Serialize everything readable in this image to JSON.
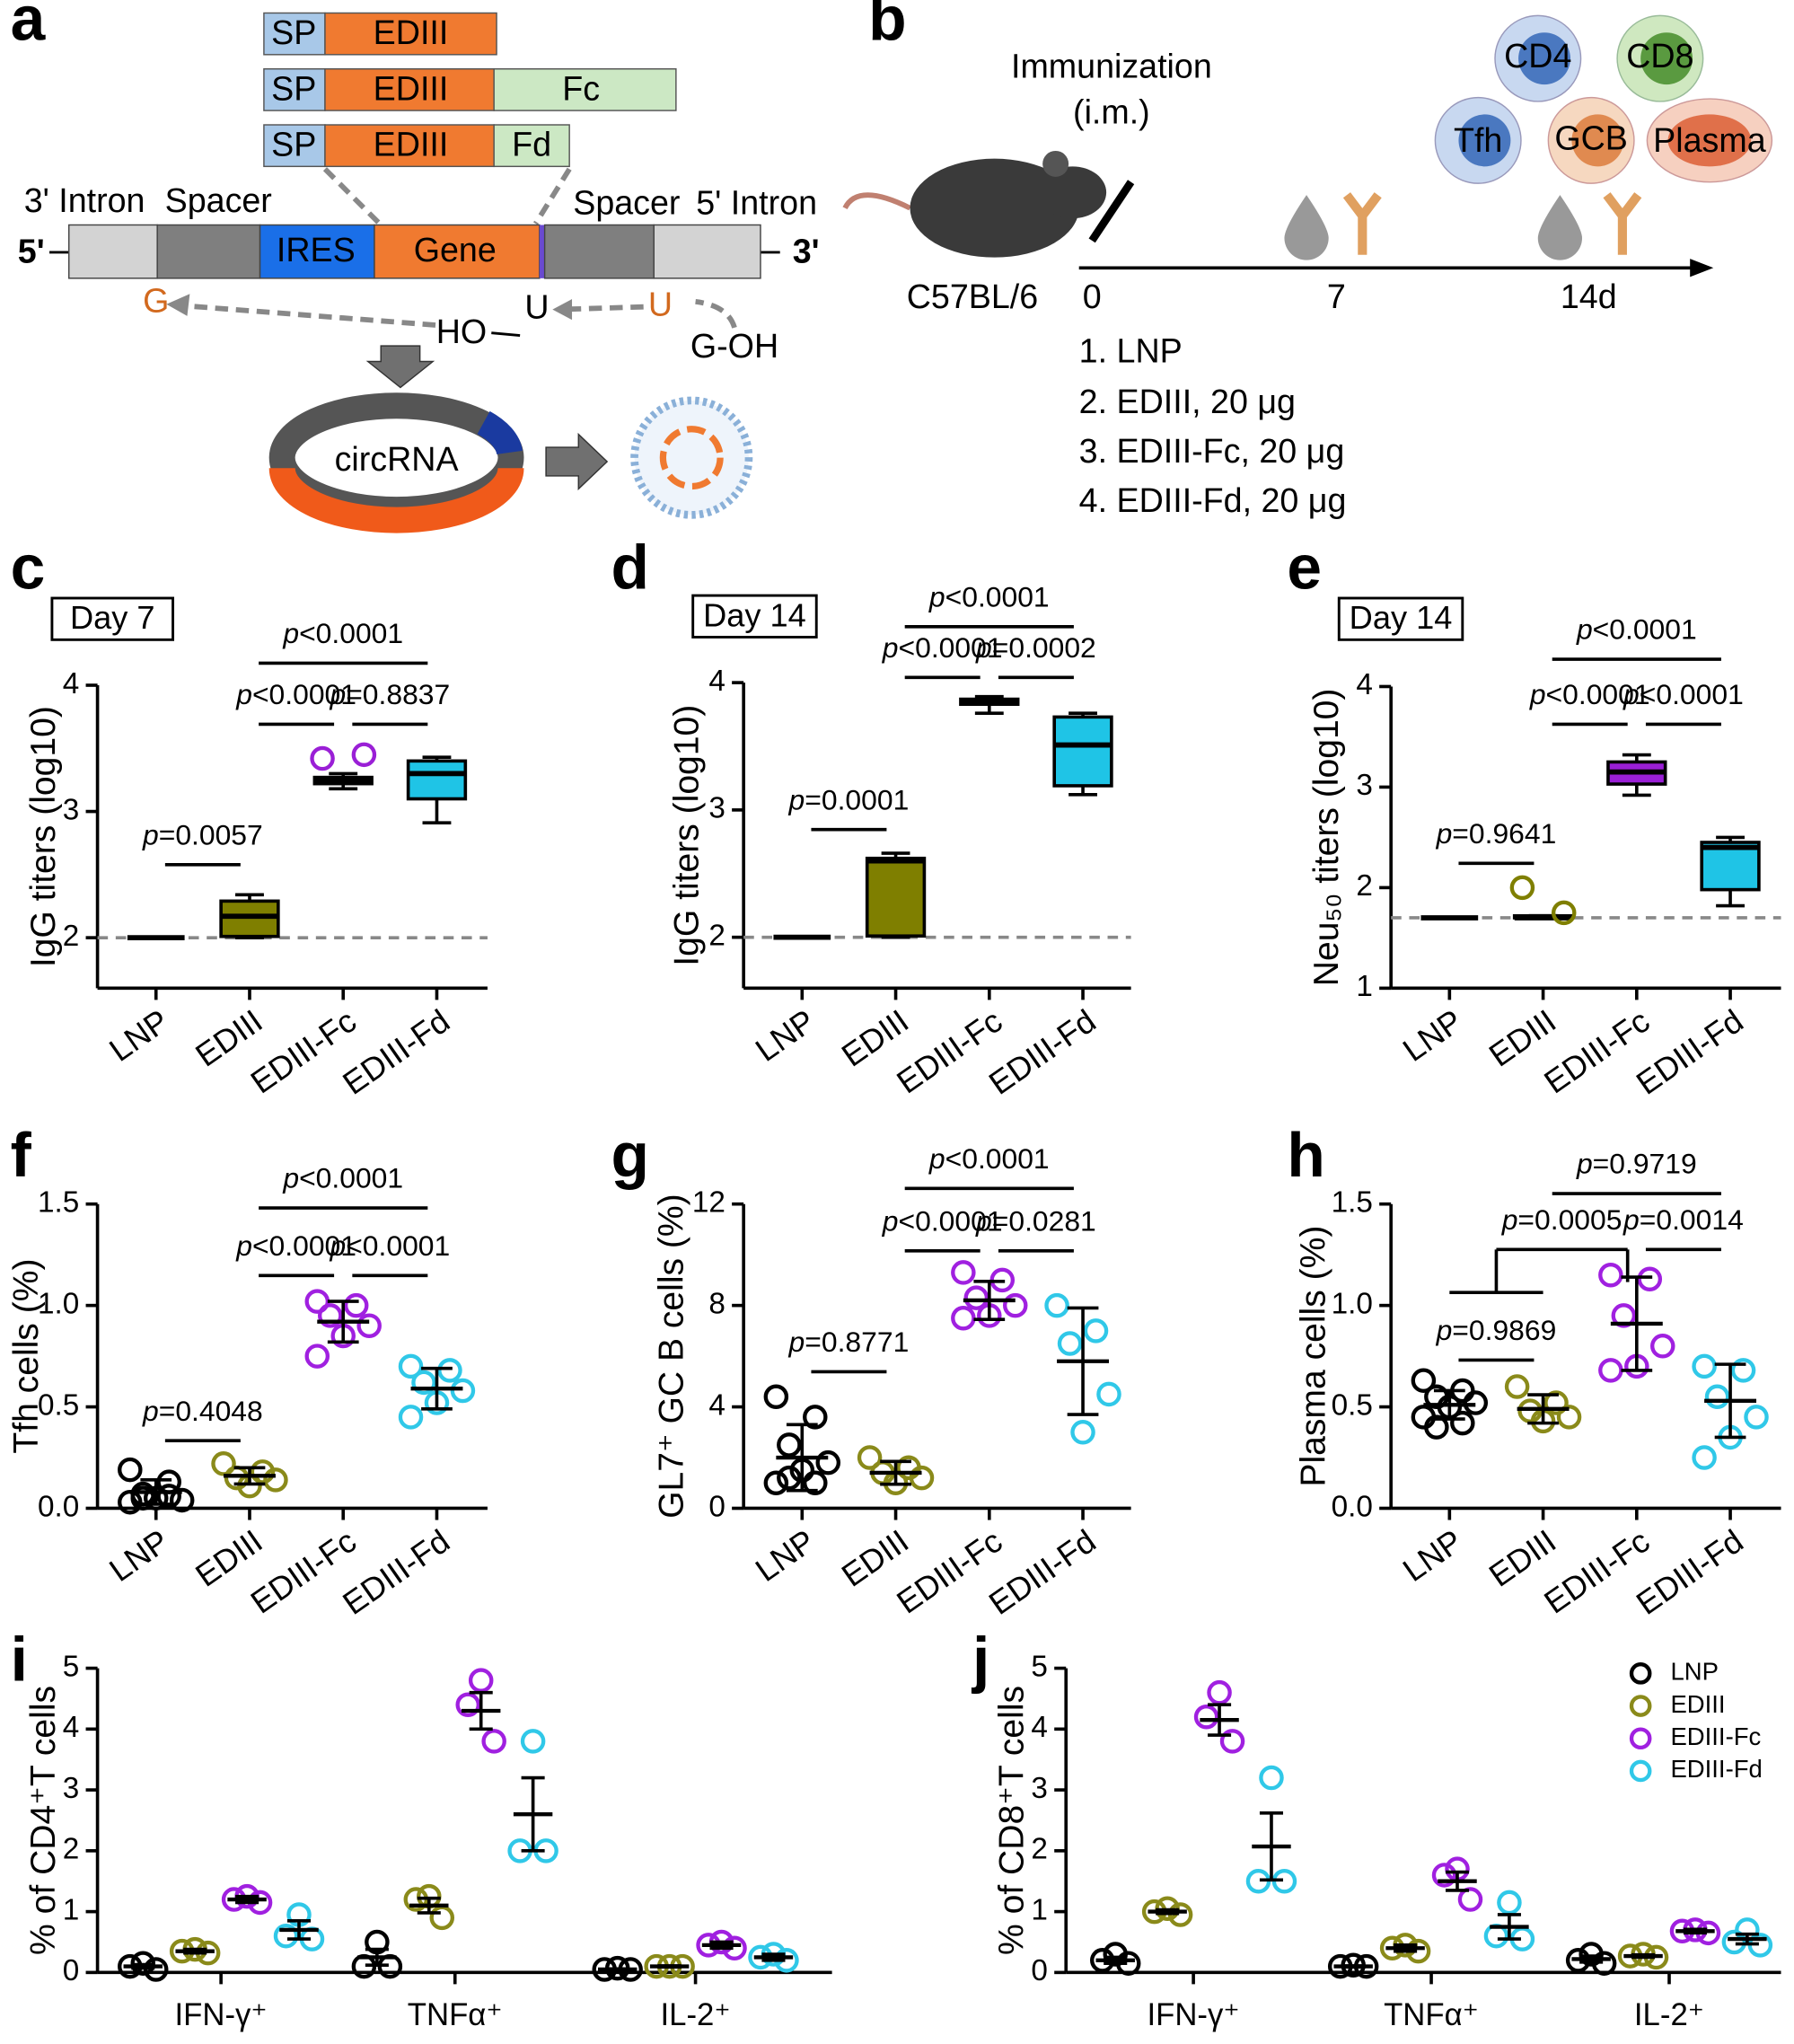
{
  "panels": [
    "a",
    "b",
    "c",
    "d",
    "e",
    "f",
    "g",
    "h",
    "i",
    "j"
  ],
  "diagram_a": {
    "constructs": [
      [
        "SP",
        "EDIII"
      ],
      [
        "SP",
        "EDIII",
        "Fc"
      ],
      [
        "SP",
        "EDIII",
        "Fd"
      ]
    ],
    "labels": [
      "3' Intron",
      "Spacer",
      "Spacer",
      "5' Intron"
    ],
    "strand": [
      "5'",
      "IRES",
      "Gene",
      "3'"
    ],
    "splicing": [
      "G",
      "HO",
      "U",
      "U",
      "G-OH"
    ],
    "product": "circRNA"
  },
  "diagram_b": {
    "title": [
      "Immunization",
      "(i.m.)"
    ],
    "cells": [
      "CD4",
      "CD8",
      "Tfh",
      "GCB",
      "Plasma"
    ],
    "mouse": "C57BL/6",
    "timepoints": [
      "0",
      "7",
      "14d"
    ],
    "groups": [
      "1. LNP",
      "2. EDIII, 20 μg",
      "3. EDIII-Fc, 20 μg",
      "4. EDIII-Fd, 20 μg"
    ]
  },
  "chart_data": [
    {
      "type": "box",
      "title": "Day 7",
      "ylabel": "IgG titers (log10)",
      "categories": [
        "LNP",
        "EDIII",
        "EDIII-Fc",
        "EDIII-Fd"
      ],
      "colors": [
        "#000000",
        "#7f7f00",
        "#9a1fd6",
        "#1fc4e6"
      ],
      "ylim": [
        1.6,
        4
      ],
      "yticks": [
        2,
        3,
        4
      ],
      "reference_line": 2,
      "boxes": [
        {
          "min": 2,
          "q1": 2,
          "median": 2,
          "q3": 2,
          "max": 2
        },
        {
          "min": 2,
          "q1": 2.01,
          "median": 2.17,
          "q3": 2.29,
          "max": 2.34
        },
        {
          "min": 3.18,
          "q1": 3.22,
          "median": 3.25,
          "q3": 3.27,
          "max": 3.3
        },
        {
          "min": 2.91,
          "q1": 3.1,
          "median": 3.3,
          "q3": 3.4,
          "max": 3.43
        }
      ],
      "points": [
        [],
        [],
        [
          3.42,
          3.45
        ],
        []
      ],
      "comparisons": [
        {
          "from": [
            0
          ],
          "to": [
            1
          ],
          "label": "p=0.0057"
        },
        {
          "from": [
            1
          ],
          "to": [
            2
          ],
          "label": "p<0.0001"
        },
        {
          "from": [
            2
          ],
          "to": [
            3
          ],
          "label": "p=0.8837"
        },
        {
          "from": [
            1
          ],
          "to": [
            3
          ],
          "label": "p<0.0001"
        }
      ]
    },
    {
      "type": "box",
      "title": "Day 14",
      "ylabel": "IgG titers (log10)",
      "categories": [
        "LNP",
        "EDIII",
        "EDIII-Fc",
        "EDIII-Fd"
      ],
      "colors": [
        "#000000",
        "#7f7f00",
        "#9a1fd6",
        "#1fc4e6"
      ],
      "ylim": [
        1.6,
        4
      ],
      "yticks": [
        2,
        3,
        4
      ],
      "reference_line": 2,
      "boxes": [
        {
          "min": 2,
          "q1": 2,
          "median": 2,
          "q3": 2,
          "max": 2
        },
        {
          "min": 2,
          "q1": 2.01,
          "median": 2.6,
          "q3": 2.62,
          "max": 2.66
        },
        {
          "min": 3.76,
          "q1": 3.83,
          "median": 3.85,
          "q3": 3.87,
          "max": 3.89
        },
        {
          "min": 3.12,
          "q1": 3.19,
          "median": 3.51,
          "q3": 3.73,
          "max": 3.76
        }
      ],
      "comparisons": [
        {
          "from": [
            0
          ],
          "to": [
            1
          ],
          "label": "p=0.0001"
        },
        {
          "from": [
            1
          ],
          "to": [
            2
          ],
          "label": "p<0.0001"
        },
        {
          "from": [
            2
          ],
          "to": [
            3
          ],
          "label": "p=0.0002"
        },
        {
          "from": [
            1
          ],
          "to": [
            3
          ],
          "label": "p<0.0001"
        }
      ]
    },
    {
      "type": "box",
      "title": "Day 14",
      "ylabel": "Neu₅₀ titers (log10)",
      "categories": [
        "LNP",
        "EDIII",
        "EDIII-Fc",
        "EDIII-Fd"
      ],
      "colors": [
        "#000000",
        "#7f7f00",
        "#9a1fd6",
        "#1fc4e6"
      ],
      "ylim": [
        1,
        4
      ],
      "yticks": [
        1,
        2,
        3,
        4
      ],
      "reference_line": 1.7,
      "boxes": [
        {
          "min": 1.7,
          "q1": 1.7,
          "median": 1.7,
          "q3": 1.7,
          "max": 1.7
        },
        {
          "min": 1.7,
          "q1": 1.7,
          "median": 1.7,
          "q3": 1.72,
          "max": 1.72
        },
        {
          "min": 2.92,
          "q1": 3.03,
          "median": 3.15,
          "q3": 3.25,
          "max": 3.32
        },
        {
          "min": 1.82,
          "q1": 1.98,
          "median": 2.4,
          "q3": 2.45,
          "max": 2.5
        }
      ],
      "points": [
        [],
        [
          2.0,
          1.75
        ],
        [],
        []
      ],
      "comparisons": [
        {
          "from": [
            0
          ],
          "to": [
            1
          ],
          "label": "p=0.9641"
        },
        {
          "from": [
            1
          ],
          "to": [
            2
          ],
          "label": "p<0.0001"
        },
        {
          "from": [
            2
          ],
          "to": [
            3
          ],
          "label": "p<0.0001"
        },
        {
          "from": [
            1
          ],
          "to": [
            3
          ],
          "label": "p<0.0001"
        }
      ]
    },
    {
      "type": "dot",
      "ylabel": "Tfh cells (%)",
      "categories": [
        "LNP",
        "EDIII",
        "EDIII-Fc",
        "EDIII-Fd"
      ],
      "colors": [
        "#000000",
        "#8a8a1a",
        "#a020e0",
        "#30c8e8"
      ],
      "ylim": [
        0,
        1.5
      ],
      "yticks": [
        {
          "value": 0,
          "label": "0.0"
        },
        {
          "value": 0.5,
          "label": "0.5"
        },
        {
          "value": 1,
          "label": "1.0"
        },
        {
          "value": 1.5,
          "label": "1.5"
        }
      ],
      "points": [
        [
          0.19,
          0.13,
          0.05,
          0.04,
          0.05,
          0.03,
          0.06,
          0.07
        ],
        [
          0.22,
          0.18,
          0.15,
          0.14,
          0.11
        ],
        [
          1.02,
          1.0,
          0.95,
          0.9,
          0.85,
          0.75
        ],
        [
          0.7,
          0.68,
          0.62,
          0.58,
          0.52,
          0.45
        ]
      ],
      "means": [
        0.08,
        0.16,
        0.92,
        0.59
      ],
      "errors": [
        0.06,
        0.04,
        0.1,
        0.1
      ],
      "comparisons": [
        {
          "from": [
            0
          ],
          "to": [
            1
          ],
          "label": "p=0.4048"
        },
        {
          "from": [
            1
          ],
          "to": [
            2
          ],
          "label": "p<0.0001"
        },
        {
          "from": [
            2
          ],
          "to": [
            3
          ],
          "label": "p<0.0001"
        },
        {
          "from": [
            1
          ],
          "to": [
            3
          ],
          "label": "p<0.0001"
        }
      ]
    },
    {
      "type": "dot",
      "ylabel": "GL7⁺ GC B cells (%)",
      "categories": [
        "LNP",
        "EDIII",
        "EDIII-Fc",
        "EDIII-Fd"
      ],
      "colors": [
        "#000000",
        "#8a8a1a",
        "#a020e0",
        "#30c8e8"
      ],
      "ylim": [
        0,
        12
      ],
      "yticks": [
        0,
        4,
        8,
        12
      ],
      "points": [
        [
          4.4,
          3.6,
          2.5,
          1.8,
          1.5,
          1.0,
          1.0,
          1.2
        ],
        [
          2.0,
          1.6,
          1.4,
          1.2,
          1.0
        ],
        [
          9.3,
          9.0,
          8.3,
          8.0,
          7.6,
          7.5
        ],
        [
          8.0,
          7.0,
          6.5,
          4.5,
          3.0
        ]
      ],
      "means": [
        2.0,
        1.4,
        8.2,
        5.8
      ],
      "errors": [
        1.3,
        0.45,
        0.75,
        2.1
      ],
      "comparisons": [
        {
          "from": [
            0
          ],
          "to": [
            1
          ],
          "label": "p=0.8771"
        },
        {
          "from": [
            1
          ],
          "to": [
            2
          ],
          "label": "p<0.0001"
        },
        {
          "from": [
            2
          ],
          "to": [
            3
          ],
          "label": "p=0.0281"
        },
        {
          "from": [
            1
          ],
          "to": [
            3
          ],
          "label": "p<0.0001"
        }
      ]
    },
    {
      "type": "dot",
      "ylabel": "Plasma cells (%)",
      "categories": [
        "LNP",
        "EDIII",
        "EDIII-Fc",
        "EDIII-Fd"
      ],
      "colors": [
        "#000000",
        "#8a8a1a",
        "#a020e0",
        "#30c8e8"
      ],
      "ylim": [
        0,
        1.5
      ],
      "yticks": [
        {
          "value": 0,
          "label": "0.0"
        },
        {
          "value": 0.5,
          "label": "0.5"
        },
        {
          "value": 1,
          "label": "1.0"
        },
        {
          "value": 1.5,
          "label": "1.5"
        }
      ],
      "points": [
        [
          0.63,
          0.58,
          0.55,
          0.52,
          0.5,
          0.45,
          0.42,
          0.4
        ],
        [
          0.6,
          0.52,
          0.48,
          0.45,
          0.43
        ],
        [
          1.15,
          1.13,
          0.95,
          0.8,
          0.7,
          0.68
        ],
        [
          0.7,
          0.68,
          0.55,
          0.45,
          0.35,
          0.25
        ]
      ],
      "means": [
        0.51,
        0.49,
        0.91,
        0.53
      ],
      "errors": [
        0.07,
        0.07,
        0.23,
        0.18
      ],
      "comparisons": [
        {
          "from": [
            0
          ],
          "to": [
            1
          ],
          "label": "p=0.9869"
        },
        {
          "from": [
            0,
            1
          ],
          "to": [
            2
          ],
          "label": "p=0.0005"
        },
        {
          "from": [
            2
          ],
          "to": [
            3
          ],
          "label": "p=0.0014"
        },
        {
          "from": [
            1
          ],
          "to": [
            3
          ],
          "label": "p=0.9719"
        }
      ]
    },
    {
      "type": "grouped_dot",
      "ylabel": "% of CD4⁺T cells",
      "categories": [
        "IFN-γ⁺",
        "TNFα⁺",
        "IL-2⁺"
      ],
      "ylim": [
        0,
        5
      ],
      "yticks": [
        0,
        1,
        2,
        3,
        4,
        5
      ],
      "series": [
        {
          "color": "#000000",
          "values": [
            [
              0.15,
              0.1,
              0.05
            ],
            [
              0.5,
              0.1,
              0.1
            ],
            [
              0.07,
              0.05,
              0.05
            ]
          ],
          "means": [
            0.1,
            0.25,
            0.05
          ],
          "errors": [
            0.03,
            0.13,
            0.01
          ]
        },
        {
          "color": "#8a8a1a",
          "values": [
            [
              0.38,
              0.35,
              0.32
            ],
            [
              1.25,
              1.2,
              0.9
            ],
            [
              0.1,
              0.1,
              0.1
            ]
          ],
          "means": [
            0.35,
            1.1,
            0.1
          ],
          "errors": [
            0.03,
            0.12,
            0.01
          ]
        },
        {
          "color": "#a020e0",
          "values": [
            [
              1.25,
              1.2,
              1.15
            ],
            [
              4.8,
              4.4,
              3.8
            ],
            [
              0.5,
              0.45,
              0.4
            ]
          ],
          "means": [
            1.2,
            4.3,
            0.45
          ],
          "errors": [
            0.05,
            0.3,
            0.05
          ]
        },
        {
          "color": "#30c8e8",
          "values": [
            [
              0.95,
              0.6,
              0.55
            ],
            [
              3.8,
              2.0,
              2.0
            ],
            [
              0.3,
              0.25,
              0.2
            ]
          ],
          "means": [
            0.7,
            2.6,
            0.25
          ],
          "errors": [
            0.15,
            0.6,
            0.05
          ]
        }
      ]
    },
    {
      "type": "grouped_dot",
      "ylabel": "% of CD8⁺T cells",
      "categories": [
        "IFN-γ⁺",
        "TNFα⁺",
        "IL-2⁺"
      ],
      "ylim": [
        0,
        5
      ],
      "yticks": [
        0,
        1,
        2,
        3,
        4,
        5
      ],
      "legend": "upper right",
      "series": [
        {
          "name": "LNP",
          "color": "#000000",
          "values": [
            [
              0.3,
              0.2,
              0.15
            ],
            [
              0.12,
              0.1,
              0.1
            ],
            [
              0.3,
              0.2,
              0.15
            ]
          ],
          "means": [
            0.2,
            0.1,
            0.22
          ],
          "errors": [
            0.05,
            0.01,
            0.05
          ]
        },
        {
          "name": "EDIII",
          "color": "#8a8a1a",
          "values": [
            [
              1.05,
              1.0,
              0.95
            ],
            [
              0.45,
              0.4,
              0.35
            ],
            [
              0.3,
              0.27,
              0.25
            ]
          ],
          "means": [
            1.0,
            0.4,
            0.27
          ],
          "errors": [
            0.03,
            0.05,
            0.02
          ]
        },
        {
          "name": "EDIII-Fc",
          "color": "#a020e0",
          "values": [
            [
              4.6,
              4.2,
              3.8
            ],
            [
              1.7,
              1.6,
              1.2
            ],
            [
              0.7,
              0.68,
              0.65
            ]
          ],
          "means": [
            4.15,
            1.5,
            0.68
          ],
          "errors": [
            0.25,
            0.15,
            0.03
          ]
        },
        {
          "name": "EDIII-Fd",
          "color": "#30c8e8",
          "values": [
            [
              3.2,
              1.5,
              1.5
            ],
            [
              1.15,
              0.6,
              0.55
            ],
            [
              0.7,
              0.5,
              0.45
            ]
          ],
          "means": [
            2.07,
            0.75,
            0.55
          ],
          "errors": [
            0.55,
            0.2,
            0.08
          ]
        }
      ]
    }
  ]
}
